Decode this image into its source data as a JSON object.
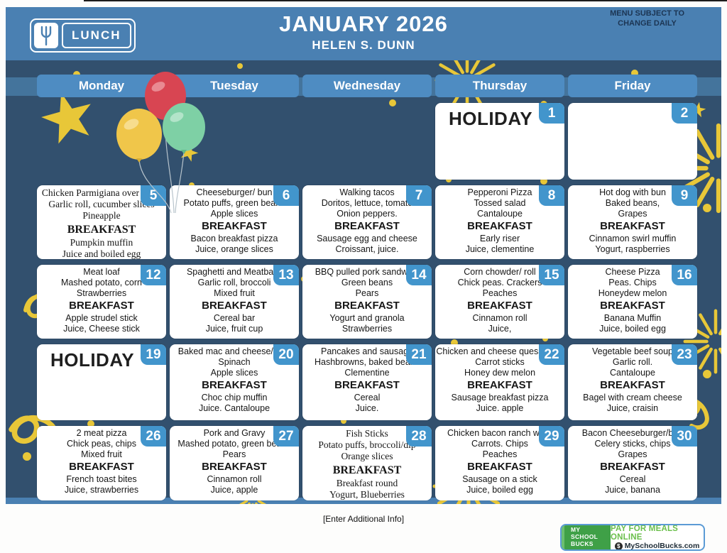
{
  "header": {
    "logo_label": "LUNCH",
    "title": "JANUARY 2026",
    "subtitle": "HELEN S. DUNN",
    "notice": "MENU SUBJECT TO\nCHANGE DAILY"
  },
  "weekdays": [
    "Monday",
    "Tuesday",
    "Wednesday",
    "Thursday",
    "Friday"
  ],
  "labels": {
    "breakfast": "BREAKFAST",
    "holiday": "HOLIDAY"
  },
  "days": [
    {
      "num": "1",
      "week": 0,
      "col": 3,
      "type": "holiday"
    },
    {
      "num": "2",
      "week": 0,
      "col": 4,
      "type": "empty"
    },
    {
      "num": "5",
      "week": 1,
      "col": 0,
      "font": "serif",
      "lunch": [
        "Chicken Parmigiana over pasta",
        "Garlic roll, cucumber slices",
        "Pineapple"
      ],
      "breakfast": [
        "Pumpkin muffin",
        "Juice and boiled egg"
      ]
    },
    {
      "num": "6",
      "week": 1,
      "col": 1,
      "lunch": [
        "Cheeseburger/ bun",
        "Potato puffs, green beans",
        "Apple slices"
      ],
      "breakfast": [
        "Bacon breakfast pizza",
        "Juice, orange slices"
      ]
    },
    {
      "num": "7",
      "week": 1,
      "col": 2,
      "lunch": [
        "Walking tacos",
        "Doritos, lettuce, tomato",
        "Onion peppers."
      ],
      "breakfast": [
        "Sausage egg and cheese",
        "Croissant, juice."
      ]
    },
    {
      "num": "8",
      "week": 1,
      "col": 3,
      "lunch": [
        "Pepperoni Pizza",
        "Tossed salad",
        "Cantaloupe"
      ],
      "breakfast": [
        "Early riser",
        "Juice, clementine"
      ]
    },
    {
      "num": "9",
      "week": 1,
      "col": 4,
      "lunch": [
        "Hot dog with bun",
        "Baked beans,",
        "Grapes"
      ],
      "breakfast": [
        "Cinnamon swirl muffin",
        "Yogurt, raspberries"
      ]
    },
    {
      "num": "12",
      "week": 2,
      "col": 0,
      "lunch": [
        "Meat loaf",
        "Mashed potato, corn",
        "Strawberries"
      ],
      "breakfast": [
        "Apple strudel stick",
        "Juice, Cheese stick"
      ]
    },
    {
      "num": "13",
      "week": 2,
      "col": 1,
      "lunch": [
        "Spaghetti and Meatballs",
        "Garlic roll, broccoli",
        "Mixed fruit"
      ],
      "breakfast": [
        "Cereal bar",
        "Juice, fruit cup"
      ]
    },
    {
      "num": "14",
      "week": 2,
      "col": 2,
      "lunch": [
        "BBQ pulled pork sandwich",
        "Green beans",
        "Pears"
      ],
      "breakfast": [
        "Yogurt and granola",
        "Strawberries"
      ]
    },
    {
      "num": "15",
      "week": 2,
      "col": 3,
      "lunch": [
        "Corn chowder/ roll",
        "Chick peas. Crackers",
        "Peaches"
      ],
      "breakfast": [
        "Cinnamon roll",
        "Juice,"
      ]
    },
    {
      "num": "16",
      "week": 2,
      "col": 4,
      "lunch": [
        "Cheese Pizza",
        "Peas. Chips",
        "Honeydew melon"
      ],
      "breakfast": [
        "Banana Muffin",
        "Juice, boiled egg"
      ]
    },
    {
      "num": "19",
      "week": 3,
      "col": 0,
      "type": "holiday"
    },
    {
      "num": "20",
      "week": 3,
      "col": 1,
      "lunch": [
        "Baked mac and cheese/ham",
        "Spinach",
        "Apple slices"
      ],
      "breakfast": [
        "Choc chip muffin",
        "Juice. Cantaloupe"
      ]
    },
    {
      "num": "21",
      "week": 3,
      "col": 2,
      "lunch": [
        "Pancakes and sausage",
        "Hashbrowns, baked beans",
        "Clementine"
      ],
      "breakfast": [
        "Cereal",
        "Juice."
      ]
    },
    {
      "num": "22",
      "week": 3,
      "col": 3,
      "lunch": [
        "Chicken and cheese quesadillas",
        "Carrot sticks",
        "Honey dew melon"
      ],
      "breakfast": [
        "Sausage breakfast pizza",
        "Juice. apple"
      ]
    },
    {
      "num": "23",
      "week": 3,
      "col": 4,
      "lunch": [
        "Vegetable beef soup",
        "Garlic roll.",
        "Cantaloupe"
      ],
      "breakfast": [
        "Bagel with cream cheese",
        "Juice, craisin"
      ]
    },
    {
      "num": "26",
      "week": 4,
      "col": 0,
      "lunch": [
        "2 meat pizza",
        "Chick peas, chips",
        "Mixed fruit"
      ],
      "breakfast": [
        "French toast bites",
        "Juice, strawberries"
      ]
    },
    {
      "num": "27",
      "week": 4,
      "col": 1,
      "lunch": [
        "Pork and Gravy",
        "Mashed potato, green beans",
        "Pears"
      ],
      "breakfast": [
        "Cinnamon roll",
        "Juice, apple"
      ]
    },
    {
      "num": "28",
      "week": 4,
      "col": 2,
      "font": "serif",
      "lunch": [
        "Fish Sticks",
        "Potato puffs, broccoli/dip",
        "Orange slices"
      ],
      "breakfast": [
        "Breakfast round",
        "Yogurt, Blueberries"
      ]
    },
    {
      "num": "29",
      "week": 4,
      "col": 3,
      "lunch": [
        "Chicken bacon ranch wrap",
        "Carrots. Chips",
        "Peaches"
      ],
      "breakfast": [
        "Sausage on a stick",
        "Juice, boiled egg"
      ]
    },
    {
      "num": "30",
      "week": 4,
      "col": 4,
      "lunch": [
        "Bacon Cheeseburger/bun",
        "Celery sticks, chips",
        "Grapes"
      ],
      "breakfast": [
        "Cereal",
        "Juice, banana"
      ]
    }
  ],
  "footer": {
    "additional_info": "[Enter Additional Info]",
    "myschoolbucks": {
      "brand": [
        "MY",
        "SCHOOL",
        "BUCKS"
      ],
      "pay_line": "PAY FOR MEALS ONLINE",
      "site": "MySchoolBucks.com"
    }
  },
  "colors": {
    "band_blue": "#4a80b2",
    "button_blue": "#4e8cc2",
    "panel_navy": "#32506e",
    "day_badge_blue": "#4295cc",
    "decor_yellow": "#e8c738",
    "msb_green": "#3fa047",
    "balloon_red": "#d84552",
    "balloon_yellow": "#f0c64a",
    "balloon_green": "#7ed0a5"
  }
}
